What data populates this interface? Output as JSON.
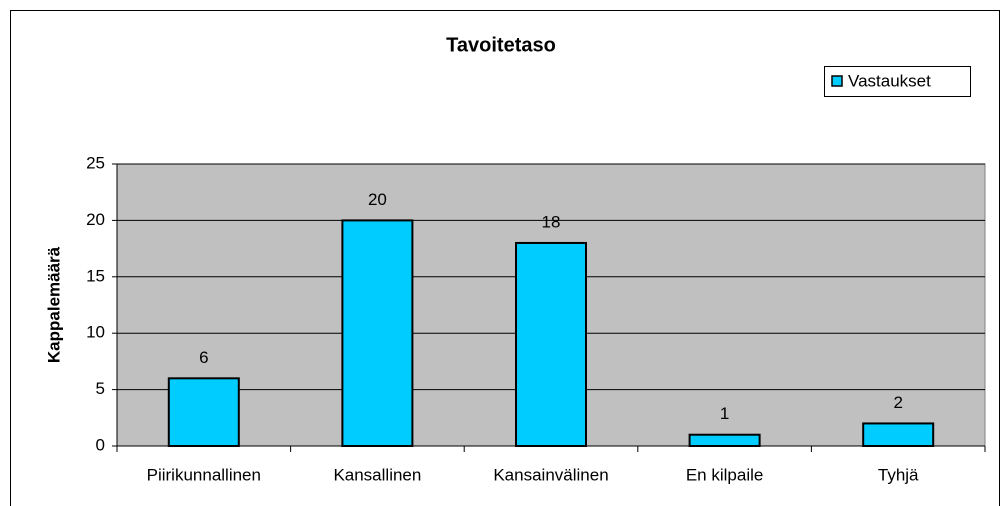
{
  "chart_data": {
    "type": "bar",
    "title": "Tavoitetaso",
    "y_label": "Kappalemäärä",
    "categories": [
      "Piirikunnallinen",
      "Kansallinen",
      "Kansainvälinen",
      "En kilpaile",
      "Tyhjä"
    ],
    "series": [
      {
        "name": "Vastaukset",
        "color": "#00ccff",
        "values": [
          6,
          20,
          18,
          1,
          2
        ]
      }
    ],
    "ylim": [
      0,
      25
    ],
    "yticks": [
      0,
      5,
      10,
      15,
      20,
      25
    ],
    "grid": true,
    "legend": "top-right",
    "data_labels": true
  }
}
